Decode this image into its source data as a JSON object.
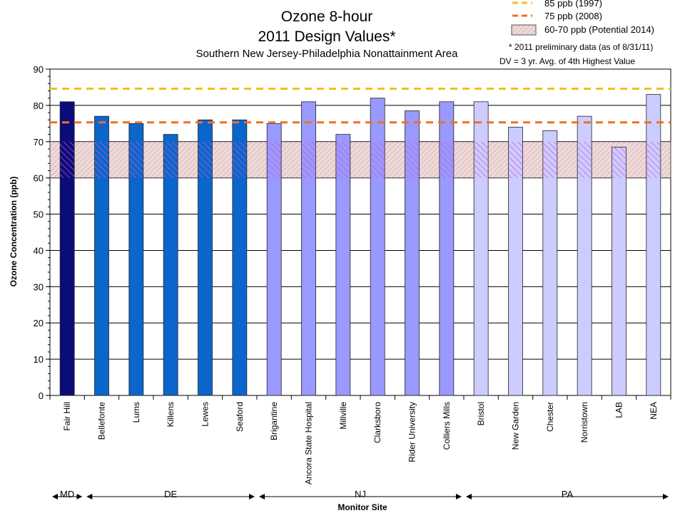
{
  "chart_data": {
    "type": "bar",
    "title": "Ozone 8-hour",
    "subtitle": "2011 Design Values*",
    "subtitle2": "Southern New Jersey-Philadelphia Nonattainment Area",
    "xlabel": "Monitor Site",
    "ylabel": "Ozone Concentration (ppb)",
    "ylim": [
      0,
      90
    ],
    "y_ticks": [
      "0",
      "10",
      "20",
      "30",
      "40",
      "50",
      "60",
      "70",
      "80",
      "90"
    ],
    "grid": true,
    "categories": [
      "Fair Hill",
      "Bellefonte",
      "Lums",
      "Killens",
      "Lewes",
      "Seaford",
      "Brigantine",
      "Ancora State Hospital",
      "Millville",
      "Clarksboro",
      "Rider University",
      "Colliers Mills",
      "Bristol",
      "New Garden",
      "Chester",
      "Norristown",
      "LAB",
      "NEA"
    ],
    "values": [
      81,
      77,
      75,
      72,
      76,
      76,
      75,
      81,
      72,
      82,
      78.5,
      81,
      81,
      74,
      73,
      77,
      68.5,
      83
    ],
    "bar_colors": [
      "#0b0b7a",
      "#0b66cc",
      "#0b66cc",
      "#0b66cc",
      "#0b66cc",
      "#0b66cc",
      "#9999ff",
      "#9999ff",
      "#9999ff",
      "#9999ff",
      "#9999ff",
      "#9999ff",
      "#ccccff",
      "#ccccff",
      "#ccccff",
      "#ccccff",
      "#ccccff",
      "#ccccff"
    ],
    "reference_lines": [
      {
        "label": "85 ppb (1997)",
        "value": 84.6,
        "color": "#f0c020"
      },
      {
        "label": "75 ppb (2008)",
        "value": 75.3,
        "color": "#f07020"
      }
    ],
    "band": {
      "label": "60-70 ppb (Potential 2014)",
      "from": 60,
      "to": 70
    },
    "notes": [
      "* 2011 preliminary data (as of 8/31/11)",
      "DV = 3 yr. Avg. of 4th Highest Value"
    ],
    "states": [
      {
        "label": "MD",
        "first": 0,
        "last": 0
      },
      {
        "label": "DE",
        "first": 1,
        "last": 5
      },
      {
        "label": "NJ",
        "first": 6,
        "last": 11
      },
      {
        "label": "PA",
        "first": 12,
        "last": 17
      }
    ]
  }
}
